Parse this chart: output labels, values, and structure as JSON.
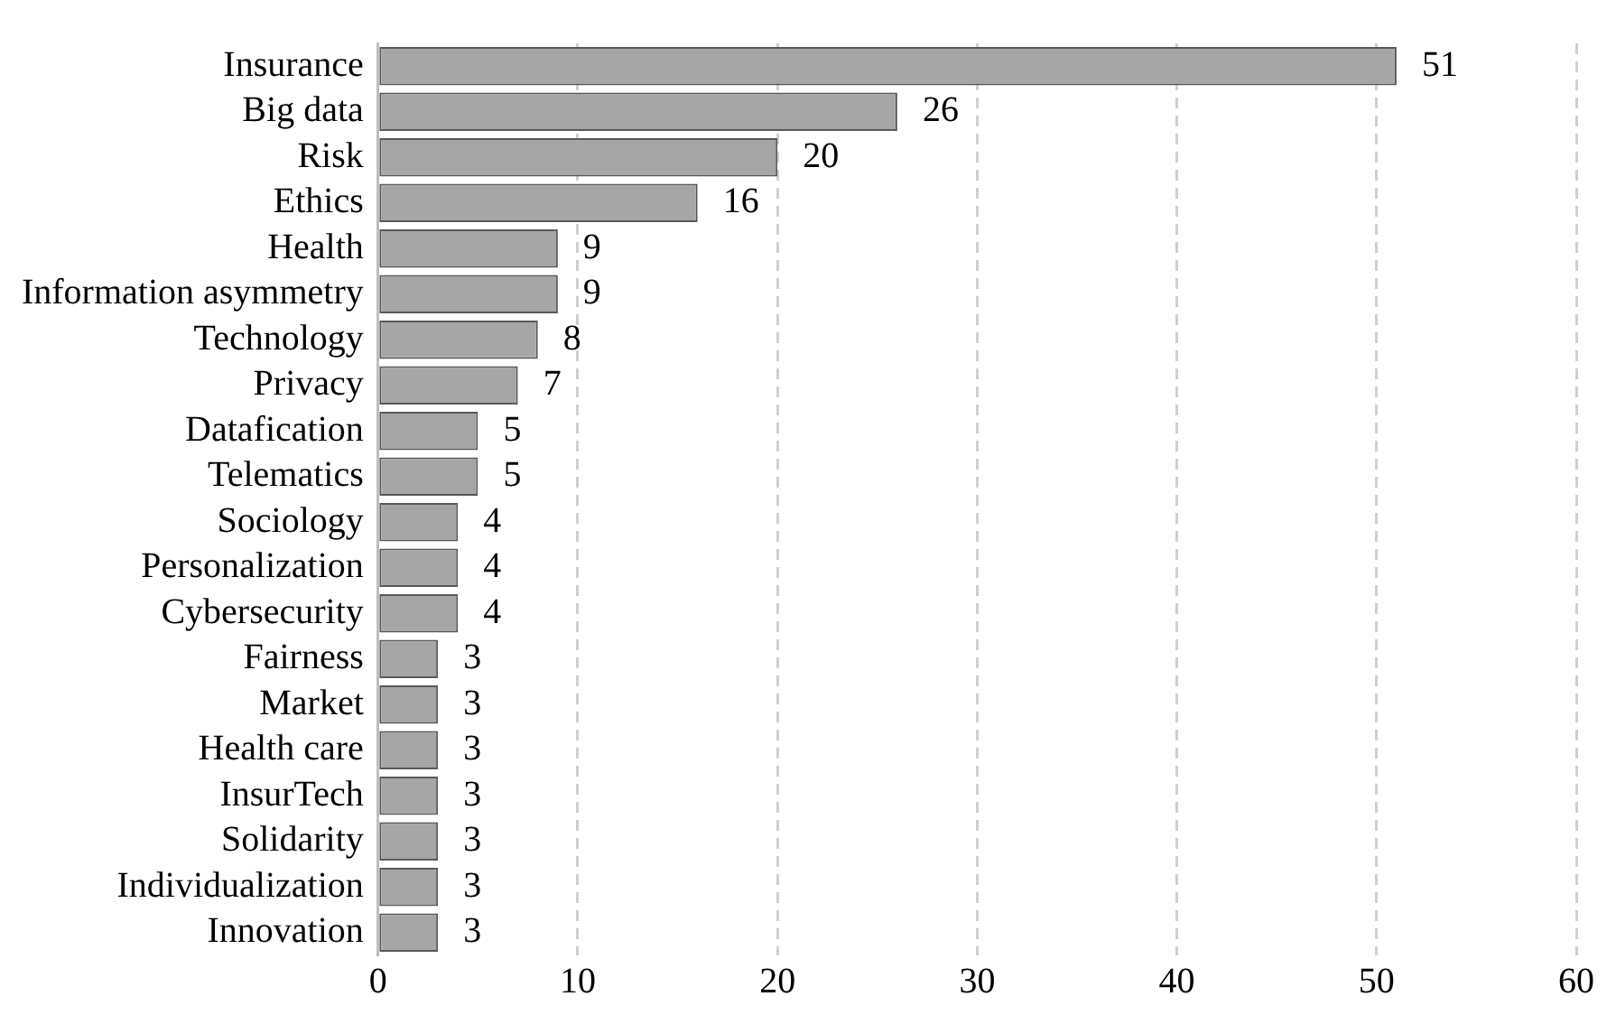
{
  "chart_data": {
    "type": "bar",
    "orientation": "horizontal",
    "categories": [
      "Insurance",
      "Big data",
      "Risk",
      "Ethics",
      "Health",
      "Information asymmetry",
      "Technology",
      "Privacy",
      "Datafication",
      "Telematics",
      "Sociology",
      "Personalization",
      "Cybersecurity",
      "Fairness",
      "Market",
      "Health care",
      "InsurTech",
      "Solidarity",
      "Individualization",
      "Innovation"
    ],
    "values": [
      51,
      26,
      20,
      16,
      9,
      9,
      8,
      7,
      5,
      5,
      4,
      4,
      4,
      3,
      3,
      3,
      3,
      3,
      3,
      3
    ],
    "color": "#a6a6a6",
    "xlim": [
      0,
      60
    ],
    "xticks": [
      0,
      10,
      20,
      30,
      40,
      50,
      60
    ],
    "grid": "x",
    "data_labels": true
  }
}
